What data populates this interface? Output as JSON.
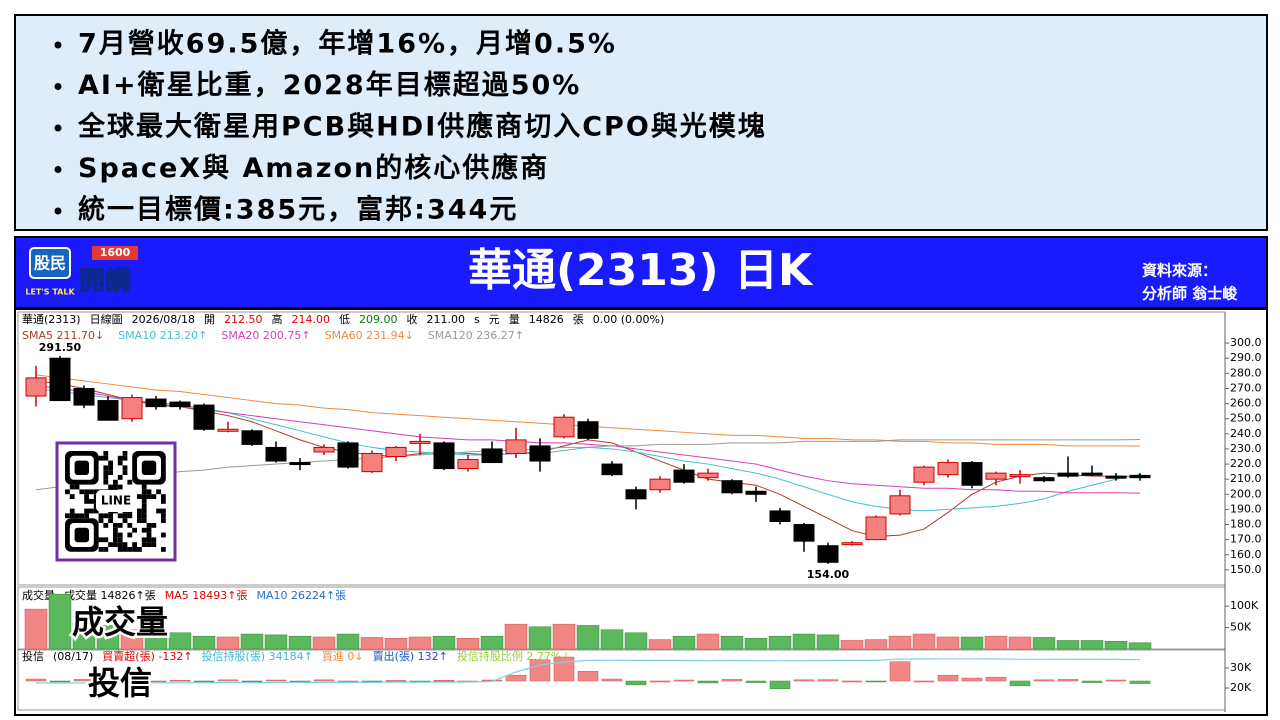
{
  "bullets": [
    "7月營收69.5億，年增16%，月增0.5%",
    "AI+衛星比重，2028年目標超過50%",
    "全球最大衛星用PCB與HDI供應商切入CPO與光模塊",
    "SpaceX與 Amazon的核心供應商",
    "統一目標價:385元，富邦:344元"
  ],
  "banner": {
    "title": "華通(2313) 日K",
    "source_label": "資料來源：",
    "source": "分析師 翁士峻",
    "logo": {
      "top": "股民",
      "bottom": "開講",
      "number": "1600",
      "tag": "LET'S TALK"
    }
  },
  "qr": {
    "label": "LINE"
  },
  "overlay_labels": [
    "成交量",
    "投信"
  ],
  "chart_data": [
    {
      "type": "candlestick",
      "header": [
        {
          "text": "華通(2313)",
          "color": "#000000"
        },
        {
          "text": "日線圖",
          "color": "#000000"
        },
        {
          "text": "2026/08/18",
          "color": "#000000"
        },
        {
          "text": "開",
          "color": "#000000"
        },
        {
          "text": "212.50",
          "color": "#e00000"
        },
        {
          "text": "高",
          "color": "#000000"
        },
        {
          "text": "214.00",
          "color": "#e00000"
        },
        {
          "text": "低",
          "color": "#000000"
        },
        {
          "text": "209.00",
          "color": "#008000"
        },
        {
          "text": "收",
          "color": "#000000"
        },
        {
          "text": "211.00",
          "color": "#000000"
        },
        {
          "text": "s",
          "color": "#000000"
        },
        {
          "text": "元",
          "color": "#000000"
        },
        {
          "text": "量",
          "color": "#000000"
        },
        {
          "text": "14826",
          "color": "#000000"
        },
        {
          "text": "張",
          "color": "#000000"
        },
        {
          "text": "0.00 (0.00%)",
          "color": "#000000"
        }
      ],
      "open": [
        265,
        290,
        270,
        262,
        250,
        263,
        261,
        259,
        242,
        242,
        231,
        221,
        228,
        234,
        215,
        225,
        234,
        234,
        217,
        230,
        227,
        232,
        238,
        248,
        220,
        203,
        203,
        216,
        211,
        209,
        202,
        189,
        180,
        166,
        167,
        170,
        187,
        208,
        213,
        221,
        210,
        212,
        211,
        214,
        214,
        212,
        212.5
      ],
      "high": [
        285,
        291.5,
        272,
        265,
        266,
        265,
        262,
        260,
        248,
        243,
        235,
        224,
        233,
        235,
        229,
        232,
        240,
        235,
        226,
        235,
        244,
        237,
        253,
        250,
        222,
        205,
        212,
        220,
        217,
        210,
        205,
        191,
        181,
        168,
        169,
        186,
        203,
        219,
        223,
        222,
        215,
        216,
        212,
        225,
        219,
        214,
        214
      ],
      "low": [
        258,
        262,
        257,
        249,
        248,
        256,
        256,
        242,
        241,
        232,
        221,
        216,
        226,
        217,
        214,
        222,
        226,
        216,
        215,
        221,
        224,
        215,
        237,
        236,
        212,
        190,
        201,
        207,
        209,
        200,
        195,
        180,
        162,
        154,
        166,
        170,
        186,
        206,
        211,
        204,
        206,
        207,
        208,
        211,
        212,
        209,
        209
      ],
      "close": [
        277,
        262,
        259,
        249,
        264,
        258,
        258,
        243,
        243,
        233,
        222,
        220,
        231,
        218,
        227,
        231,
        235,
        217,
        223,
        221,
        236,
        222,
        251,
        237,
        213,
        197,
        210,
        208,
        214,
        201,
        200,
        182,
        169,
        155,
        168,
        185,
        199,
        218,
        221,
        206,
        214,
        213,
        209,
        212,
        213,
        211,
        211
      ],
      "high_labels": [
        null,
        "291.50",
        null,
        null,
        null,
        null,
        null,
        null,
        null,
        null,
        null,
        null,
        null,
        null,
        null,
        null,
        null,
        null,
        null,
        null,
        null,
        null,
        null,
        null,
        null,
        null,
        null,
        null,
        null,
        null,
        null,
        null,
        null,
        null,
        null,
        null,
        null,
        null,
        null,
        null,
        null,
        null,
        null,
        null,
        null,
        null,
        null
      ],
      "low_labels": [
        null,
        null,
        null,
        null,
        null,
        null,
        null,
        null,
        null,
        null,
        null,
        null,
        null,
        null,
        null,
        null,
        null,
        null,
        null,
        null,
        null,
        null,
        null,
        null,
        null,
        null,
        null,
        null,
        null,
        null,
        null,
        null,
        null,
        "154.00",
        null,
        null,
        null,
        null,
        null,
        null,
        null,
        null,
        null,
        null,
        null,
        null,
        null
      ],
      "up_color": "#f4817e",
      "down_color": "#000000",
      "series": [
        {
          "name": "SMA5 211.70↓",
          "color": "#b03a2e",
          "values": [
            275,
            273,
            270,
            266,
            262,
            259,
            258,
            255,
            252,
            248,
            242,
            236,
            231,
            228,
            226,
            225,
            227,
            228,
            227,
            226,
            227,
            228,
            232,
            236,
            234,
            228,
            222,
            216,
            210,
            208,
            206,
            200,
            192,
            184,
            176,
            172,
            173,
            177,
            188,
            200,
            208,
            212,
            214,
            213,
            212,
            212,
            211.7
          ]
        },
        {
          "name": "SMA10 213.20↑",
          "color": "#3fc1d0",
          "values": [
            270,
            268,
            266,
            264,
            262,
            261,
            259,
            257,
            254,
            250,
            246,
            242,
            238,
            234,
            231,
            229,
            228,
            227,
            226,
            226,
            227,
            227,
            229,
            231,
            230,
            228,
            225,
            222,
            220,
            217,
            214,
            210,
            205,
            200,
            195,
            192,
            190,
            189,
            190,
            191,
            192,
            194,
            197,
            202,
            206,
            210,
            213.2
          ]
        },
        {
          "name": "SMA20 200.75↑",
          "color": "#d63fb8",
          "values": [
            272,
            270,
            268,
            265,
            262,
            260,
            258,
            256,
            254,
            252,
            250,
            248,
            246,
            244,
            242,
            240,
            238,
            237,
            236,
            236,
            235,
            234,
            234,
            233,
            232,
            230,
            228,
            226,
            224,
            222,
            220,
            216,
            212,
            209,
            207,
            206,
            205,
            204,
            204,
            203,
            203,
            202,
            202,
            201,
            201,
            201,
            200.75
          ]
        },
        {
          "name": "SMA60 231.94↓",
          "color": "#f08a3c",
          "values": [
            279,
            277,
            275,
            273,
            271,
            269,
            268,
            266,
            264,
            262,
            260,
            259,
            257,
            256,
            254,
            253,
            252,
            251,
            250,
            249,
            248,
            247,
            246,
            245,
            244,
            243,
            242,
            241,
            240,
            239,
            239,
            238,
            237,
            237,
            236,
            236,
            235,
            235,
            234,
            234,
            233,
            233,
            233,
            232,
            232,
            232,
            231.94
          ]
        },
        {
          "name": "SMA120 236.27↑",
          "color": "#999999",
          "values": [
            203,
            205,
            207,
            209,
            211,
            213,
            215,
            216,
            218,
            219,
            220,
            221,
            222,
            223,
            224,
            225,
            226,
            227,
            228,
            229,
            229,
            230,
            231,
            231,
            232,
            232,
            233,
            233,
            233,
            234,
            234,
            234,
            235,
            235,
            235,
            235,
            236,
            236,
            236,
            236,
            236,
            236,
            236,
            236,
            236,
            236,
            236.27
          ]
        }
      ],
      "ylim": [
        140,
        310
      ],
      "yticks": [
        {
          "value": 150,
          "label": "150.0"
        },
        {
          "value": 160,
          "label": "160.0"
        },
        {
          "value": 170,
          "label": "170.0"
        },
        {
          "value": 180,
          "label": "180.0"
        },
        {
          "value": 190,
          "label": "190.0"
        },
        {
          "value": 200,
          "label": "200.0"
        },
        {
          "value": 210,
          "label": "210.0"
        },
        {
          "value": 220,
          "label": "220.0"
        },
        {
          "value": 230,
          "label": "230.0"
        },
        {
          "value": 240,
          "label": "240.0"
        },
        {
          "value": 250,
          "label": "250.0"
        },
        {
          "value": 260,
          "label": "260.0"
        },
        {
          "value": 270,
          "label": "270.0"
        },
        {
          "value": 280,
          "label": "280.0"
        },
        {
          "value": 290,
          "label": "290.0"
        },
        {
          "value": 300,
          "label": "300.0"
        }
      ]
    },
    {
      "type": "bar",
      "header": [
        {
          "text": "成交量",
          "color": "#000000"
        },
        {
          "text": "成交量 14826↑張",
          "color": "#000000"
        },
        {
          "text": "MA5 18493↑張",
          "color": "#e00000"
        },
        {
          "text": "MA10 26224↑張",
          "color": "#1f6fd0"
        }
      ],
      "values": [
        93000,
        128000,
        62000,
        55000,
        45000,
        42000,
        38000,
        30000,
        28000,
        35000,
        33000,
        30000,
        28000,
        35000,
        27000,
        25000,
        28000,
        30000,
        25000,
        30000,
        58000,
        52000,
        58000,
        55000,
        45000,
        38000,
        22000,
        30000,
        35000,
        30000,
        25000,
        30000,
        35000,
        33000,
        20000,
        22000,
        30000,
        35000,
        28000,
        28000,
        30000,
        28000,
        27000,
        20000,
        20000,
        18000,
        14826
      ],
      "up_color": "#f08784",
      "down_color": "#5cb85c",
      "ylim": [
        0,
        140000
      ],
      "yticks": [
        {
          "value": 50000,
          "label": "50K"
        },
        {
          "value": 100000,
          "label": "100K"
        }
      ]
    },
    {
      "type": "bar",
      "header": [
        {
          "text": "投信",
          "color": "#000000"
        },
        {
          "text": "(08/17)",
          "color": "#000000"
        },
        {
          "text": "買賣超(張) -132↑",
          "color": "#e00000"
        },
        {
          "text": "投信持股(張) 34184↑",
          "color": "#3fb6d0"
        },
        {
          "text": "買進 0↓",
          "color": "#f08a3c"
        },
        {
          "text": "賣出(張) 132↑",
          "color": "#1f4fd0"
        },
        {
          "text": "投信持股比例 2.77%↓",
          "color": "#9acd32"
        }
      ],
      "values": [
        100,
        -50,
        80,
        -60,
        50,
        0,
        40,
        -30,
        60,
        -40,
        50,
        -50,
        60,
        0,
        -40,
        30,
        -20,
        40,
        0,
        50,
        300,
        1100,
        1240,
        500,
        100,
        -200,
        0,
        50,
        -100,
        80,
        -80,
        -400,
        60,
        70,
        0,
        -50,
        1000,
        0,
        300,
        150,
        200,
        -250,
        60,
        80,
        -80,
        50,
        -132
      ],
      "up_color": "#f08784",
      "down_color": "#5cb85c",
      "ylim": [
        -1500,
        1500
      ],
      "series": [
        {
          "color": "#7fd3e0",
          "axis": "y2",
          "values": [
            22500,
            22500,
            22500,
            22600,
            22600,
            22600,
            22600,
            22700,
            22700,
            22700,
            22700,
            22800,
            22800,
            22800,
            22800,
            22900,
            22900,
            22900,
            23000,
            23300,
            28000,
            31500,
            33000,
            33800,
            33900,
            33800,
            33800,
            33800,
            33700,
            33800,
            33700,
            33600,
            33700,
            33800,
            33800,
            33800,
            34500,
            34500,
            34600,
            34600,
            34500,
            34400,
            34400,
            34300,
            34300,
            34300,
            34184
          ]
        }
      ],
      "y2lim": [
        9000,
        38000
      ],
      "y2ticks": [
        {
          "value": 20000,
          "label": "20K"
        },
        {
          "value": 30000,
          "label": "30K"
        }
      ]
    }
  ]
}
